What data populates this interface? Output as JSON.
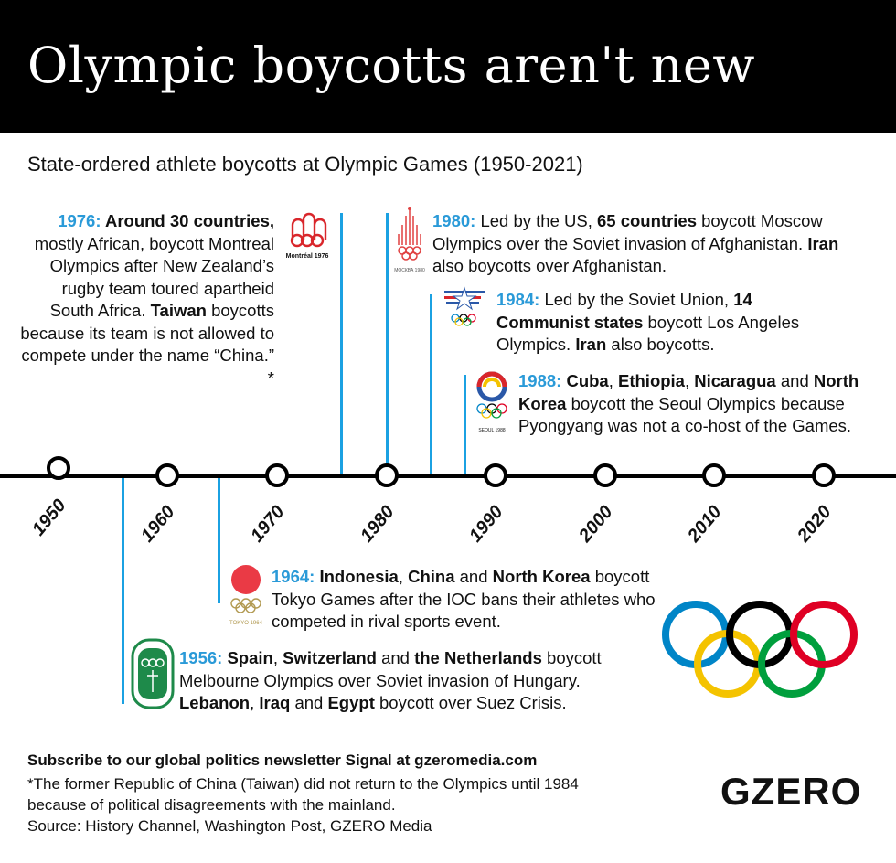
{
  "header": {
    "title": "Olympic boycotts aren't new"
  },
  "subtitle": "State-ordered athlete boycotts at Olympic Games (1950-2021)",
  "timeline": {
    "ticks": [
      "1950",
      "1960",
      "1970",
      "1980",
      "1990",
      "2000",
      "2010",
      "2020"
    ]
  },
  "events": [
    {
      "id": "1976",
      "segments": [
        {
          "t": "1976: ",
          "s": "yr"
        },
        {
          "t": "Around 30 countries,",
          "s": "b"
        },
        {
          "t": " mostly African, boycott Montreal Olympics after New Zealand’s rugby team toured apartheid South Africa. "
        },
        {
          "t": "Taiwan",
          "s": "b"
        },
        {
          "t": " boycotts because its team is not allowed to compete under the name “China.” *"
        }
      ],
      "logo_text": "Montréal 1976"
    },
    {
      "id": "1980",
      "segments": [
        {
          "t": "1980: ",
          "s": "yr"
        },
        {
          "t": "Led by the US, "
        },
        {
          "t": "65 countries",
          "s": "b"
        },
        {
          "t": " boycott Moscow Olympics over the Soviet invasion of Afghanistan. "
        },
        {
          "t": "Iran",
          "s": "b"
        },
        {
          "t": " also boycotts over Afghanistan."
        }
      ],
      "logo_text": "МОСКВА 1980"
    },
    {
      "id": "1984",
      "segments": [
        {
          "t": "1984: ",
          "s": "yr"
        },
        {
          "t": "Led by the Soviet Union, "
        },
        {
          "t": "14 Communist states",
          "s": "b"
        },
        {
          "t": " boycott Los Angeles Olympics. "
        },
        {
          "t": "Iran",
          "s": "b"
        },
        {
          "t": " also boycotts."
        }
      ]
    },
    {
      "id": "1988",
      "segments": [
        {
          "t": "1988: ",
          "s": "yr"
        },
        {
          "t": "Cuba",
          "s": "b"
        },
        {
          "t": ", "
        },
        {
          "t": "Ethiopia",
          "s": "b"
        },
        {
          "t": ", "
        },
        {
          "t": "Nicaragua",
          "s": "b"
        },
        {
          "t": " and "
        },
        {
          "t": "North Korea",
          "s": "b"
        },
        {
          "t": " boycott the Seoul Olympics because Pyongyang was not a co-host of the Games."
        }
      ],
      "logo_text": "SEOUL 1988"
    },
    {
      "id": "1964",
      "segments": [
        {
          "t": "1964: ",
          "s": "yr"
        },
        {
          "t": "Indonesia",
          "s": "b"
        },
        {
          "t": ", "
        },
        {
          "t": "China",
          "s": "b"
        },
        {
          "t": " and "
        },
        {
          "t": "North Korea",
          "s": "b"
        },
        {
          "t": " boycott Tokyo Games after the IOC bans their athletes who competed in rival sports event."
        }
      ],
      "logo_text": "TOKYO 1964"
    },
    {
      "id": "1956",
      "segments": [
        {
          "t": "1956: ",
          "s": "yr"
        },
        {
          "t": "Spain",
          "s": "b"
        },
        {
          "t": ", "
        },
        {
          "t": "Switzerland",
          "s": "b"
        },
        {
          "t": " and "
        },
        {
          "t": "the Netherlands",
          "s": "b"
        },
        {
          "t": " boycott Melbourne Olympics over Soviet invasion of Hungary. "
        },
        {
          "t": "Lebanon",
          "s": "b"
        },
        {
          "t": ", "
        },
        {
          "t": "Iraq",
          "s": "b"
        },
        {
          "t": " and "
        },
        {
          "t": "Egypt",
          "s": "b"
        },
        {
          "t": " boycott over Suez Crisis."
        }
      ]
    }
  ],
  "footer": {
    "subscribe": "Subscribe to our global politics newsletter Signal at gzeromedia.com",
    "note": "*The former Republic of China (Taiwan) did not return to the Olympics until 1984 because of political disagreements with the mainland.",
    "source": "Source: History Channel, Washington Post, GZERO Media",
    "brand": "GZERO"
  },
  "colors": {
    "accent": "#2a9ad8",
    "line": "#1ba1e2",
    "rings": [
      "#0085c7",
      "#000000",
      "#df0024",
      "#f4c300",
      "#009f3d"
    ]
  }
}
